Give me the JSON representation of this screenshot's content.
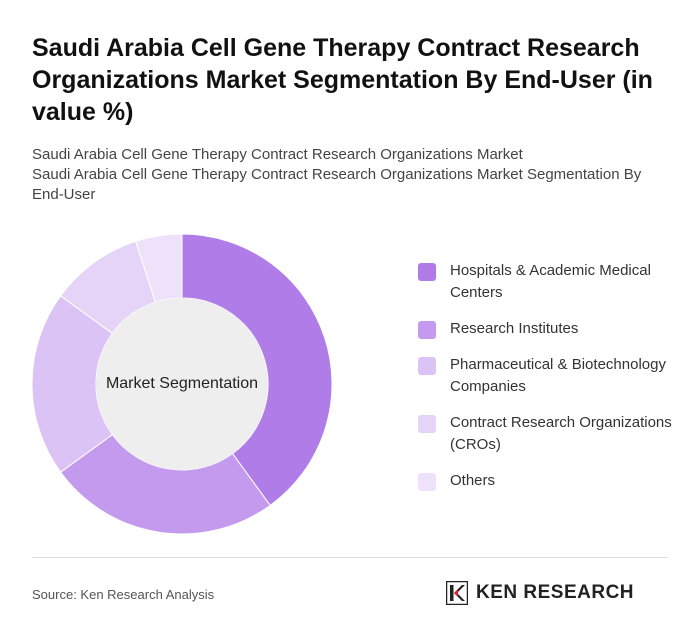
{
  "header": {
    "title": "Saudi Arabia Cell Gene Therapy Contract Research Organizations Market Segmentation By End-User (in value %)",
    "subtitle_line1": "Saudi Arabia Cell Gene Therapy Contract Research Organizations Market",
    "subtitle_line2": "Saudi Arabia Cell Gene Therapy Contract Research Organizations Market Segmentation By End-User"
  },
  "chart_data": {
    "type": "pie",
    "donut": true,
    "center_label": "Market Segmentation",
    "legend_position": "right",
    "categories": [
      "Hospitals & Academic Medical Centers",
      "Research Institutes",
      "Pharmaceutical & Biotechnology Companies",
      "Contract Research Organizations (CROs)",
      "Others"
    ],
    "values": [
      40,
      25,
      20,
      10,
      5
    ],
    "colors": [
      "#b07ce8",
      "#c49aee",
      "#dbc4f5",
      "#e5d4f8",
      "#ede2fa"
    ]
  },
  "footer": {
    "source": "Source: Ken Research Analysis",
    "brand": "KEN RESEARCH",
    "brand_logo_icon": "ken-research-logo-icon"
  }
}
